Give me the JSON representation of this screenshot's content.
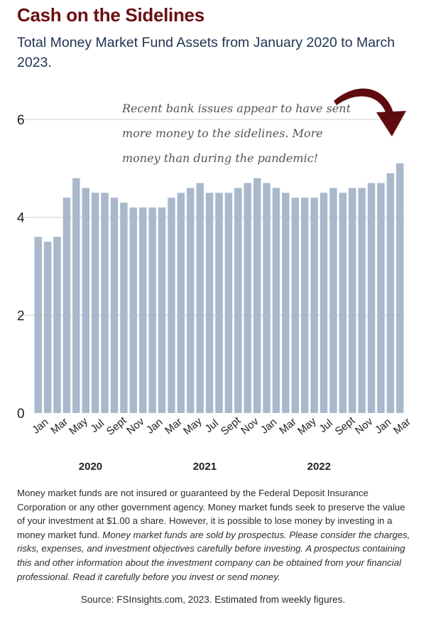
{
  "title": "Cash on the Sidelines",
  "subtitle": "Total Money Market Fund Assets from January 2020 to March 2023.",
  "annotation": [
    "Recent bank issues appear to have sent",
    "more money to the sidelines. More",
    "money than during the pandemic!"
  ],
  "colors": {
    "bar": "#a9b8cb",
    "accent": "#6b0f12",
    "arrow": "#5e0b0f",
    "grid": "#cfcfcf"
  },
  "disclaimer": {
    "plain": "Money market funds are not insured or guaranteed by the Federal Deposit Insurance Corporation or any other government agency. Money market funds seek to preserve the value of your investment at $1.00 a share. However, it is possible to lose money by investing in a money market fund.",
    "italic": "Money market funds are sold by prospectus. Please consider the charges, risks, expenses, and investment objectives carefully before investing. A prospectus containing this and other information about the investment company can be obtained from your financial professional. Read it carefully before you invest or send money."
  },
  "source": "Source: FSInsights.com, 2023. Estimated from weekly figures.",
  "chart_data": {
    "type": "bar",
    "ylim": [
      0,
      6
    ],
    "yticks": [
      0,
      2,
      4,
      6
    ],
    "grid": true,
    "values": [
      3.6,
      3.5,
      3.6,
      4.4,
      4.8,
      4.6,
      4.5,
      4.5,
      4.4,
      4.3,
      4.2,
      4.2,
      4.2,
      4.2,
      4.4,
      4.5,
      4.6,
      4.7,
      4.5,
      4.5,
      4.5,
      4.6,
      4.7,
      4.8,
      4.7,
      4.6,
      4.5,
      4.4,
      4.4,
      4.4,
      4.5,
      4.6,
      4.5,
      4.6,
      4.6,
      4.7,
      4.7,
      4.9,
      5.1
    ],
    "xtick_labels": [
      {
        "index": 0,
        "label": "Jan"
      },
      {
        "index": 2,
        "label": "Mar"
      },
      {
        "index": 4,
        "label": "May"
      },
      {
        "index": 6,
        "label": "Jul"
      },
      {
        "index": 8,
        "label": "Sept"
      },
      {
        "index": 10,
        "label": "Nov"
      },
      {
        "index": 12,
        "label": "Jan"
      },
      {
        "index": 14,
        "label": "Mar"
      },
      {
        "index": 16,
        "label": "May"
      },
      {
        "index": 18,
        "label": "Jul"
      },
      {
        "index": 20,
        "label": "Sept"
      },
      {
        "index": 22,
        "label": "Nov"
      },
      {
        "index": 24,
        "label": "Jan"
      },
      {
        "index": 26,
        "label": "Mar"
      },
      {
        "index": 28,
        "label": "May"
      },
      {
        "index": 30,
        "label": "Jul"
      },
      {
        "index": 32,
        "label": "Sept"
      },
      {
        "index": 34,
        "label": "Nov"
      },
      {
        "index": 36,
        "label": "Jan"
      },
      {
        "index": 38,
        "label": "Mar"
      }
    ],
    "year_labels": [
      {
        "index": 5.5,
        "label": "2020"
      },
      {
        "index": 17.5,
        "label": "2021"
      },
      {
        "index": 29.5,
        "label": "2022"
      }
    ]
  }
}
